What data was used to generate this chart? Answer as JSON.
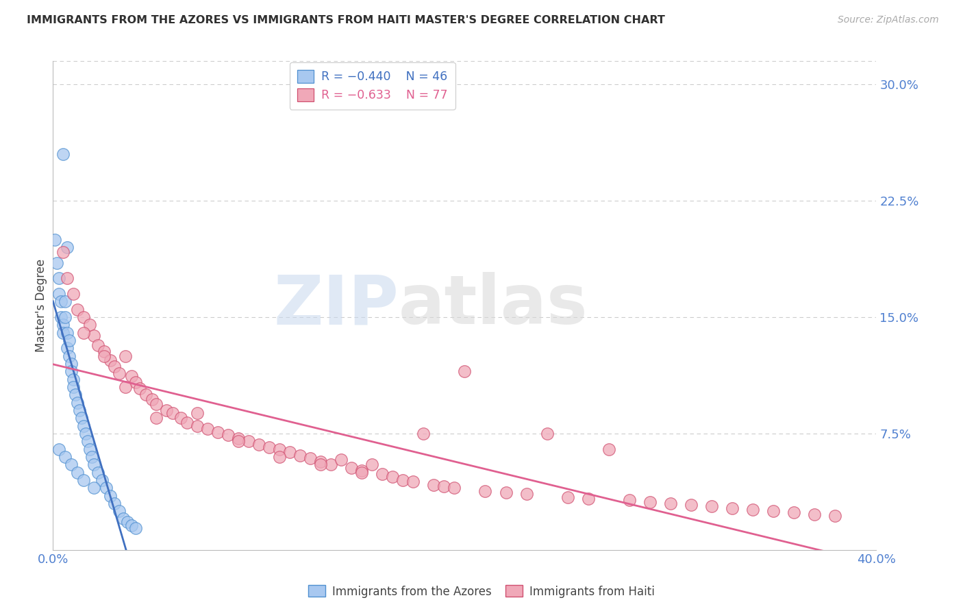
{
  "title": "IMMIGRANTS FROM THE AZORES VS IMMIGRANTS FROM HAITI MASTER'S DEGREE CORRELATION CHART",
  "source": "Source: ZipAtlas.com",
  "ylabel": "Master's Degree",
  "right_ytick_labels": [
    "7.5%",
    "15.0%",
    "22.5%",
    "30.0%"
  ],
  "right_ytick_vals": [
    0.075,
    0.15,
    0.225,
    0.3
  ],
  "xlim": [
    0.0,
    0.4
  ],
  "ylim": [
    0.0,
    0.315
  ],
  "legend_label_azores": "Immigrants from the Azores",
  "legend_label_haiti": "Immigrants from Haiti",
  "legend_R_azores": "−0.440",
  "legend_N_azores": "46",
  "legend_R_haiti": "−0.633",
  "legend_N_haiti": "77",
  "color_azores_fill": "#A8C8F0",
  "color_azores_edge": "#5090D0",
  "color_haiti_fill": "#F0A8B8",
  "color_haiti_edge": "#D05070",
  "color_line_azores": "#4070C0",
  "color_line_haiti": "#E06090",
  "color_axis_right": "#5080D0",
  "color_axis_bottom": "#5080D0",
  "color_title": "#303030",
  "color_source": "#AAAAAA",
  "watermark_ZIP": "ZIP",
  "watermark_atlas": "atlas",
  "background_color": "#FFFFFF",
  "grid_color": "#CCCCCC",
  "azores_x": [
    0.005,
    0.007,
    0.001,
    0.002,
    0.003,
    0.003,
    0.004,
    0.004,
    0.005,
    0.005,
    0.006,
    0.006,
    0.007,
    0.007,
    0.008,
    0.008,
    0.009,
    0.009,
    0.01,
    0.01,
    0.011,
    0.012,
    0.013,
    0.014,
    0.015,
    0.016,
    0.017,
    0.018,
    0.019,
    0.02,
    0.022,
    0.024,
    0.026,
    0.028,
    0.03,
    0.032,
    0.034,
    0.036,
    0.038,
    0.04,
    0.003,
    0.006,
    0.009,
    0.012,
    0.015,
    0.02
  ],
  "azores_y": [
    0.255,
    0.195,
    0.2,
    0.185,
    0.175,
    0.165,
    0.16,
    0.15,
    0.145,
    0.14,
    0.16,
    0.15,
    0.14,
    0.13,
    0.135,
    0.125,
    0.12,
    0.115,
    0.11,
    0.105,
    0.1,
    0.095,
    0.09,
    0.085,
    0.08,
    0.075,
    0.07,
    0.065,
    0.06,
    0.055,
    0.05,
    0.045,
    0.04,
    0.035,
    0.03,
    0.025,
    0.02,
    0.018,
    0.016,
    0.014,
    0.065,
    0.06,
    0.055,
    0.05,
    0.045,
    0.04
  ],
  "haiti_x": [
    0.005,
    0.007,
    0.01,
    0.012,
    0.015,
    0.018,
    0.02,
    0.022,
    0.025,
    0.028,
    0.03,
    0.032,
    0.035,
    0.038,
    0.04,
    0.042,
    0.045,
    0.048,
    0.05,
    0.055,
    0.058,
    0.062,
    0.065,
    0.07,
    0.075,
    0.08,
    0.085,
    0.09,
    0.095,
    0.1,
    0.105,
    0.11,
    0.115,
    0.12,
    0.125,
    0.13,
    0.135,
    0.14,
    0.145,
    0.15,
    0.155,
    0.16,
    0.165,
    0.17,
    0.175,
    0.18,
    0.185,
    0.19,
    0.195,
    0.2,
    0.21,
    0.22,
    0.23,
    0.24,
    0.25,
    0.26,
    0.27,
    0.28,
    0.29,
    0.3,
    0.31,
    0.32,
    0.33,
    0.34,
    0.35,
    0.36,
    0.37,
    0.38,
    0.015,
    0.025,
    0.035,
    0.05,
    0.07,
    0.09,
    0.11,
    0.13,
    0.15
  ],
  "haiti_y": [
    0.192,
    0.175,
    0.165,
    0.155,
    0.15,
    0.145,
    0.138,
    0.132,
    0.128,
    0.122,
    0.118,
    0.114,
    0.125,
    0.112,
    0.108,
    0.104,
    0.1,
    0.097,
    0.094,
    0.09,
    0.088,
    0.085,
    0.082,
    0.08,
    0.078,
    0.076,
    0.074,
    0.072,
    0.07,
    0.068,
    0.066,
    0.065,
    0.063,
    0.061,
    0.059,
    0.057,
    0.055,
    0.058,
    0.053,
    0.051,
    0.055,
    0.049,
    0.047,
    0.045,
    0.044,
    0.075,
    0.042,
    0.041,
    0.04,
    0.115,
    0.038,
    0.037,
    0.036,
    0.075,
    0.034,
    0.033,
    0.065,
    0.032,
    0.031,
    0.03,
    0.029,
    0.028,
    0.027,
    0.026,
    0.025,
    0.024,
    0.023,
    0.022,
    0.14,
    0.125,
    0.105,
    0.085,
    0.088,
    0.07,
    0.06,
    0.055,
    0.05
  ],
  "azores_line_x": [
    0.0,
    0.09
  ],
  "haiti_line_x": [
    0.0,
    0.4
  ]
}
